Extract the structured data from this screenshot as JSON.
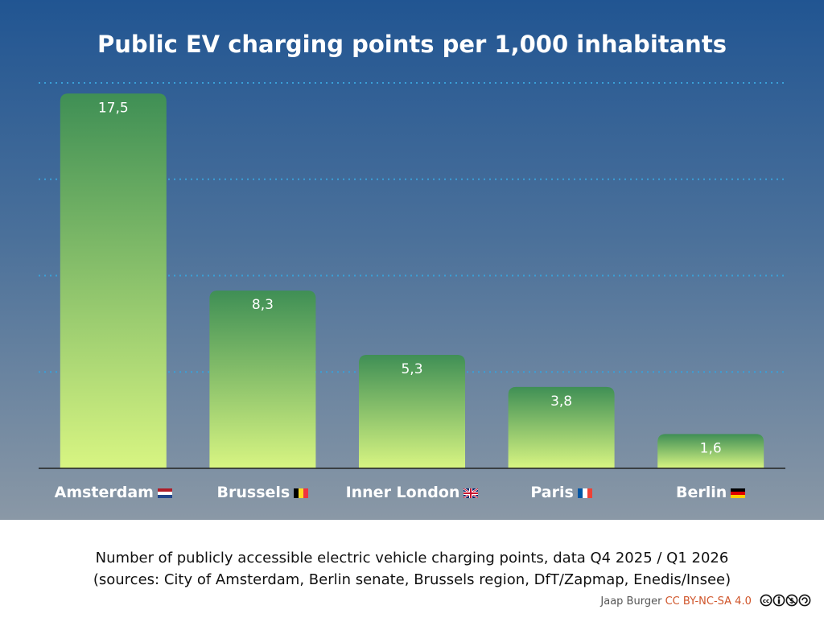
{
  "chart_data": {
    "type": "bar",
    "title": "Public EV charging points per 1,000 inhabitants",
    "categories": [
      "Amsterdam",
      "Brussels",
      "Inner London",
      "Paris",
      "Berlin"
    ],
    "flags": [
      "flag-netherlands",
      "flag-belgium",
      "flag-united-kingdom",
      "flag-france",
      "flag-germany"
    ],
    "values": [
      17.5,
      8.3,
      5.3,
      3.8,
      1.6
    ],
    "data_labels": [
      "17,5",
      "8,3",
      "5,3",
      "3,8",
      "1,6"
    ],
    "ylim": [
      0,
      18
    ],
    "gridlines": [
      4.5,
      9,
      13.5,
      18
    ],
    "grid": true,
    "xlabel": "",
    "ylabel": "",
    "colors": {
      "bar_top": "#3f8f55",
      "bar_bottom": "#d8f582",
      "grid": "#3aa0d8",
      "background_top": "#215592",
      "background_bottom": "#8a98a6"
    }
  },
  "caption": {
    "line1": "Number of publicly accessible electric vehicle charging points, data Q4 2025 / Q1 2026",
    "line2": "(sources: City of Amsterdam, Berlin senate, Brussels region, DfT/Zapmap, Enedis/Insee)"
  },
  "credit": {
    "author": "Jaap Burger",
    "license": "CC BY-NC-SA 4.0",
    "license_icon": "cc-by-nc-sa-icon"
  }
}
